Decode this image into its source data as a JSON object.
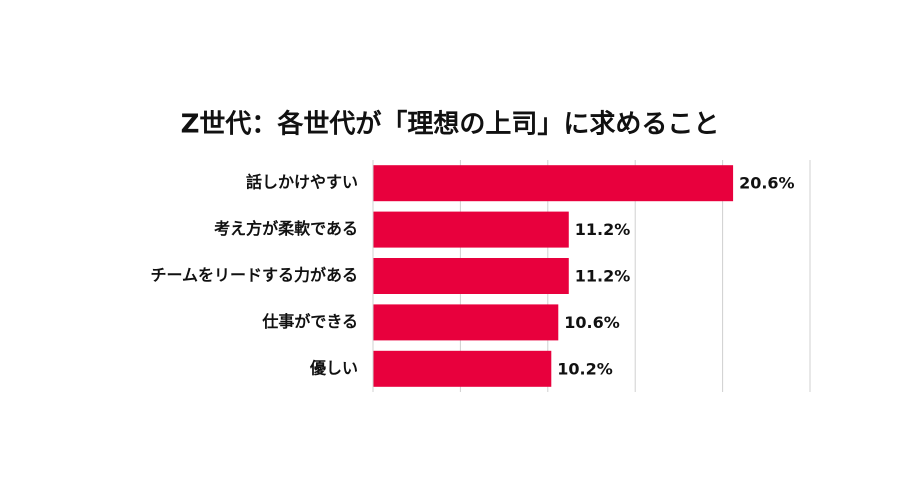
{
  "chart_data": {
    "type": "bar",
    "orientation": "horizontal",
    "title": "Z世代：各世代が「理想の上司」に求めること",
    "categories": [
      "話しかけやすい",
      "考え方が柔軟である",
      "チームをリードする力がある",
      "仕事ができる",
      "優しい"
    ],
    "values": [
      20.6,
      11.2,
      11.2,
      10.6,
      10.2
    ],
    "value_labels": [
      "20.6%",
      "11.2%",
      "11.2%",
      "10.6%",
      "10.2%"
    ],
    "color": "#e8003d",
    "xlim": [
      0,
      25
    ],
    "xticks": [
      0,
      5,
      10,
      15,
      20,
      25
    ],
    "grid": true
  }
}
